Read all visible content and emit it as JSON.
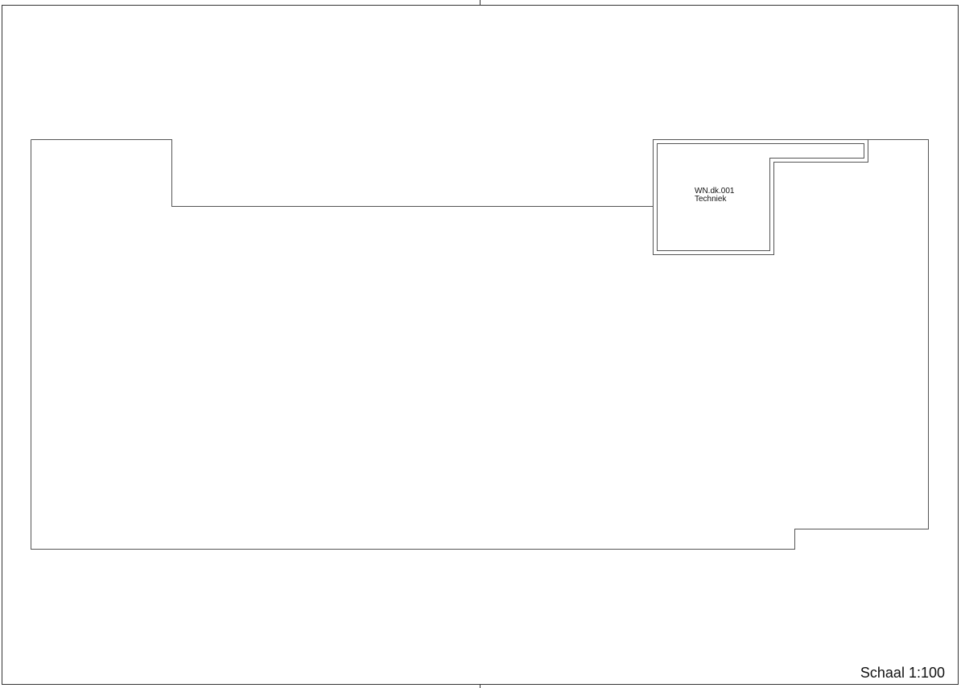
{
  "drawing": {
    "room": {
      "code": "WN.dk.001",
      "name": "Techniek"
    },
    "scale_label": "Schaal 1:100"
  },
  "colors": {
    "line": "#555555",
    "background": "#ffffff",
    "text": "#111111"
  }
}
